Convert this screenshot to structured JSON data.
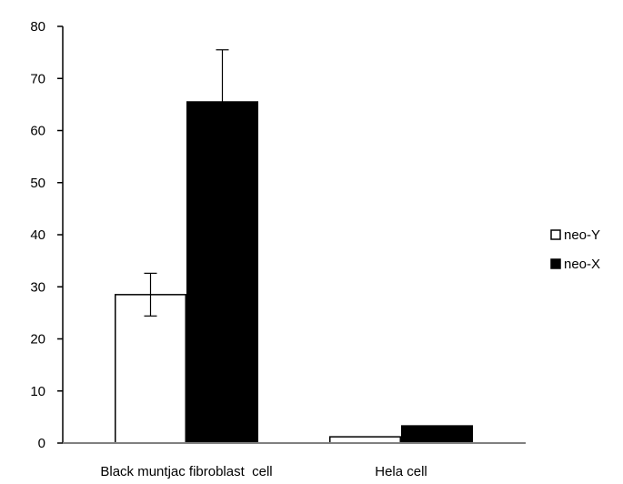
{
  "chart_data": {
    "type": "bar",
    "title": "",
    "xlabel": "",
    "ylabel": "",
    "categories": [
      "Black muntjac fibroblast  cell",
      "Hela cell"
    ],
    "ylim": [
      0,
      80
    ],
    "yticks": [
      0,
      10,
      20,
      30,
      40,
      50,
      60,
      70,
      80
    ],
    "grid": false,
    "legend_position": "right",
    "series": [
      {
        "name": "neo-Y",
        "fill": "#ffffff",
        "stroke": "#000000",
        "values": [
          28.5,
          1.2
        ],
        "error": [
          4.1,
          0
        ]
      },
      {
        "name": "neo-X",
        "fill": "#000000",
        "stroke": "#000000",
        "values": [
          65.5,
          3.3
        ],
        "error": [
          10.0,
          0
        ]
      }
    ]
  }
}
